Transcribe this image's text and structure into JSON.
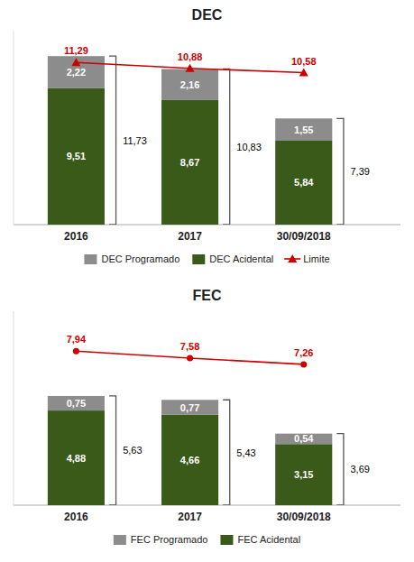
{
  "chart_data": [
    {
      "type": "bar",
      "stacked": true,
      "title": "DEC",
      "categories": [
        "2016",
        "2017",
        "30/09/2018"
      ],
      "series": [
        {
          "name": "DEC Acidental",
          "color": "#3a5a1a",
          "values": [
            9.51,
            8.67,
            5.84
          ],
          "value_labels": [
            "9,51",
            "8,67",
            "5,84"
          ]
        },
        {
          "name": "DEC Programado",
          "color": "#8c8c8c",
          "values": [
            2.22,
            2.16,
            1.55
          ],
          "value_labels": [
            "2,22",
            "2,16",
            "1,55"
          ]
        },
        {
          "name": "Limite",
          "type": "line",
          "marker": "triangle",
          "color": "#cc0000",
          "values": [
            11.29,
            10.88,
            10.58
          ],
          "value_labels": [
            "11,29",
            "10,88",
            "10,58"
          ]
        }
      ],
      "totals": [
        11.73,
        10.83,
        7.39
      ],
      "total_labels": [
        "11,73",
        "10,83",
        "7,39"
      ],
      "ylim": [
        0,
        13.5
      ],
      "yticks": [],
      "tick_labels": "x",
      "grid": false,
      "legend": "bottom",
      "data_labels": true
    },
    {
      "type": "bar",
      "stacked": true,
      "title": "FEC",
      "categories": [
        "2016",
        "2017",
        "30/09/2018"
      ],
      "series": [
        {
          "name": "FEC Acidental",
          "color": "#3a5a1a",
          "values": [
            4.88,
            4.66,
            3.15
          ],
          "value_labels": [
            "4,88",
            "4,66",
            "3,15"
          ]
        },
        {
          "name": "FEC Programado",
          "color": "#8c8c8c",
          "values": [
            0.75,
            0.77,
            0.54
          ],
          "value_labels": [
            "0,75",
            "0,77",
            "0,54"
          ]
        },
        {
          "type": "line",
          "marker": "circle",
          "color": "#cc0000",
          "values": [
            7.94,
            7.58,
            7.26
          ],
          "value_labels": [
            "7,94",
            "7,58",
            "7,26"
          ]
        }
      ],
      "totals": [
        5.63,
        5.43,
        3.69
      ],
      "total_labels": [
        "5,63",
        "5,43",
        "3,69"
      ],
      "ylim": [
        0,
        10.0
      ],
      "yticks": [],
      "tick_labels": "x",
      "grid": false,
      "legend": "bottom",
      "data_labels": true
    }
  ]
}
